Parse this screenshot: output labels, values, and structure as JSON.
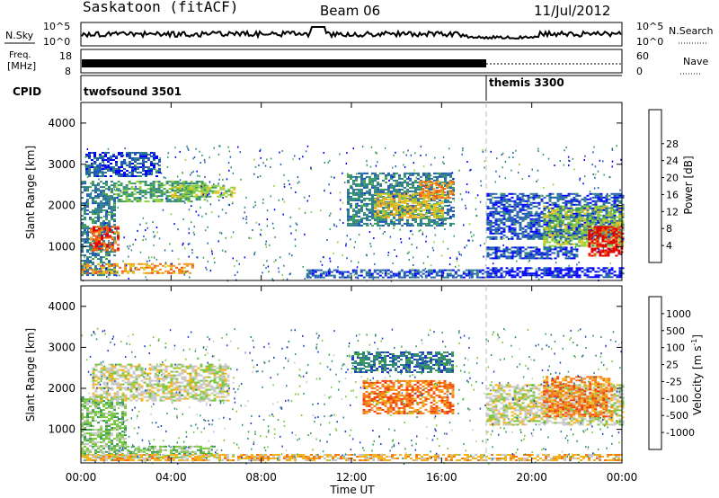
{
  "header": {
    "station": "Saskatoon (fitACF)",
    "beam": "Beam 06",
    "date": "11/Jul/2012"
  },
  "top_panels": {
    "nsky_label": "N.Sky",
    "nsky_tick_high": "10^5",
    "nsky_tick_low": "10^0",
    "nsearch_label": "N.Search",
    "nsearch_tick_high": "10^5",
    "nsearch_tick_low": "10^0",
    "freq_label_1": "Freq.",
    "freq_label_2": "[MHz]",
    "freq_tick_high": "18",
    "freq_tick_low": "8",
    "nave_label": "Nave",
    "nave_tick_high": "60",
    "nave_tick_low": "0",
    "cpid_label": "CPID",
    "cpid_segments": [
      {
        "name": "twofsound 3501",
        "start_hour": 0,
        "end_hour": 18
      },
      {
        "name": "themis 3300",
        "start_hour": 18,
        "end_hour": 24
      }
    ]
  },
  "chart_data": [
    {
      "type": "heatmap",
      "title": "Power",
      "xlabel": "",
      "ylabel": "Slant Range [km]",
      "x_range_hours": [
        0,
        24
      ],
      "ylim": [
        180,
        4500
      ],
      "yticks": [
        1000,
        2000,
        3000,
        4000
      ],
      "colorbar": {
        "label": "Power [dB]",
        "ticks": [
          "4",
          "8",
          "12",
          "16",
          "20",
          "24",
          "28"
        ],
        "range": [
          0,
          30
        ],
        "colors": [
          "#0000ff",
          "#1e5ab4",
          "#2f7f8a",
          "#3c9e55",
          "#8fcf3c",
          "#e6c31e",
          "#f5961e",
          "#f05a14",
          "#e10000"
        ]
      },
      "bands": [
        {
          "start_hour": 0.0,
          "end_hour": 1.5,
          "low_km": 300,
          "high_km": 2600,
          "level": 2
        },
        {
          "start_hour": 0.4,
          "end_hour": 1.6,
          "low_km": 900,
          "high_km": 1500,
          "level": 7
        },
        {
          "start_hour": 0.0,
          "end_hour": 5.0,
          "low_km": 350,
          "high_km": 600,
          "level": 6
        },
        {
          "start_hour": 1.5,
          "end_hour": 5.5,
          "low_km": 2100,
          "high_km": 2600,
          "level": 3
        },
        {
          "start_hour": 4.0,
          "end_hour": 6.8,
          "low_km": 2200,
          "high_km": 2500,
          "level": 4
        },
        {
          "start_hour": 0.2,
          "end_hour": 3.5,
          "low_km": 2700,
          "high_km": 3300,
          "level": 1
        },
        {
          "start_hour": 10.0,
          "end_hour": 18.0,
          "low_km": 250,
          "high_km": 450,
          "level": 1
        },
        {
          "start_hour": 11.8,
          "end_hour": 16.5,
          "low_km": 1500,
          "high_km": 2800,
          "level": 2
        },
        {
          "start_hour": 13.0,
          "end_hour": 16.0,
          "low_km": 1700,
          "high_km": 2300,
          "level": 5
        },
        {
          "start_hour": 15.0,
          "end_hour": 16.5,
          "low_km": 2200,
          "high_km": 2600,
          "level": 6
        },
        {
          "start_hour": 18.0,
          "end_hour": 24.0,
          "low_km": 1200,
          "high_km": 2300,
          "level": 1
        },
        {
          "start_hour": 20.5,
          "end_hour": 24.0,
          "low_km": 1000,
          "high_km": 2000,
          "level": 4
        },
        {
          "start_hour": 22.5,
          "end_hour": 24.0,
          "low_km": 800,
          "high_km": 1500,
          "level": 8
        },
        {
          "start_hour": 18.0,
          "end_hour": 24.0,
          "low_km": 250,
          "high_km": 500,
          "level": 0
        },
        {
          "start_hour": 18.0,
          "end_hour": 22.0,
          "low_km": 700,
          "high_km": 1000,
          "level": 1
        }
      ]
    },
    {
      "type": "heatmap",
      "title": "Velocity",
      "xlabel": "Time UT",
      "ylabel": "Slant Range [km]",
      "x_range_hours": [
        0,
        24
      ],
      "xticks": [
        "00:00",
        "04:00",
        "08:00",
        "12:00",
        "16:00",
        "20:00",
        "00:00"
      ],
      "ylim": [
        180,
        4500
      ],
      "yticks": [
        1000,
        2000,
        3000,
        4000
      ],
      "colorbar": {
        "label": "Velocity [m s^-1]",
        "ticks": [
          "1000",
          "500",
          "100",
          "25",
          "-25",
          "-100",
          "-500",
          "-1000"
        ],
        "colors": [
          "#1e3cc8",
          "#2f7f8a",
          "#3c9e55",
          "#78c83c",
          "#c8c8c8",
          "#f5b41e",
          "#f57814",
          "#f03c0a",
          "#e10000"
        ]
      },
      "bands": [
        {
          "start_hour": 0.0,
          "end_hour": 6.0,
          "low_km": 300,
          "high_km": 600,
          "level": 3
        },
        {
          "start_hour": 0.0,
          "end_hour": 2.0,
          "low_km": 600,
          "high_km": 1800,
          "level": 3
        },
        {
          "start_hour": 0.5,
          "end_hour": 6.5,
          "low_km": 1700,
          "high_km": 2600,
          "level": 4
        },
        {
          "start_hour": 12.0,
          "end_hour": 16.5,
          "low_km": 2400,
          "high_km": 2900,
          "level": 1
        },
        {
          "start_hour": 12.5,
          "end_hour": 16.5,
          "low_km": 1400,
          "high_km": 2200,
          "level": 6
        },
        {
          "start_hour": 18.0,
          "end_hour": 24.0,
          "low_km": 1100,
          "high_km": 2100,
          "level": 4
        },
        {
          "start_hour": 20.5,
          "end_hour": 23.5,
          "low_km": 1300,
          "high_km": 2300,
          "level": 6
        },
        {
          "start_hour": 0.0,
          "end_hour": 24.0,
          "low_km": 250,
          "high_km": 400,
          "level": 5
        }
      ]
    }
  ]
}
